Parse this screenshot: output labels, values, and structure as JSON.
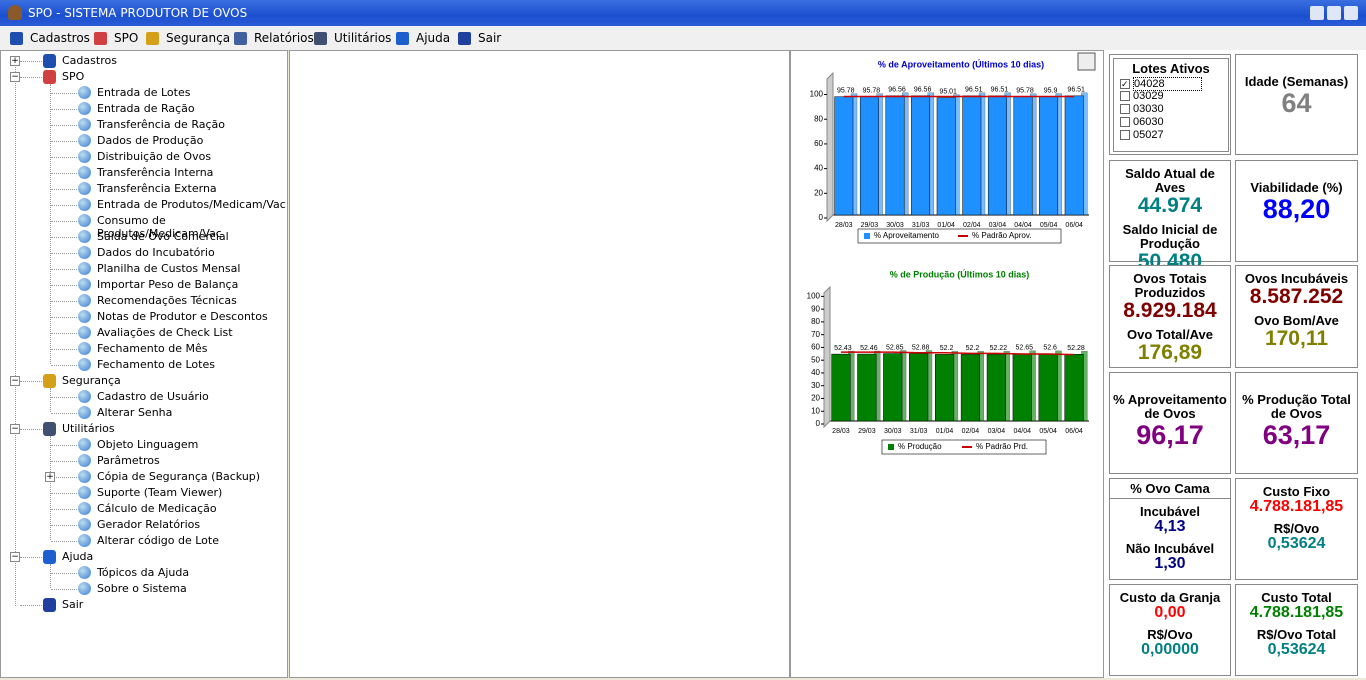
{
  "window": {
    "title": "SPO - SISTEMA PRODUTOR DE OVOS"
  },
  "menu": [
    "Cadastros",
    "SPO",
    "Segurança",
    "Relatórios",
    "Utilitários",
    "Ajuda",
    "Sair"
  ],
  "tree": [
    {
      "label": "Cadastros",
      "children": []
    },
    {
      "label": "SPO",
      "children": [
        "Entrada de Lotes",
        "Entrada de Ração",
        "Transferência de Ração",
        "Dados de Produção",
        "Distribuição de Ovos",
        "Transferência Interna",
        "Transferência Externa",
        "Entrada de Produtos/Medicam/Vac",
        "Consumo de Produtos/Medicam/Vac",
        "Saída de Ovo Comercial",
        "Dados do Incubatório",
        "Planilha de Custos Mensal",
        "Importar Peso de Balança",
        "Recomendações Técnicas",
        "Notas de Produtor e Descontos",
        "Avaliações de Check List",
        "Fechamento de Mês",
        "Fechamento de Lotes"
      ]
    },
    {
      "label": "Segurança",
      "children": [
        "Cadastro de Usuário",
        "Alterar Senha"
      ]
    },
    {
      "label": "Utilitários",
      "children": [
        "Objeto Linguagem",
        "Parâmetros",
        "Cópia de Segurança (Backup)",
        "Suporte (Team Viewer)",
        "Cálculo de Medicação",
        "Gerador Relatórios",
        "Alterar código de Lote"
      ]
    },
    {
      "label": "Ajuda",
      "children": [
        "Tópicos da Ajuda",
        "Sobre o Sistema"
      ]
    },
    {
      "label": "Sair",
      "children": []
    }
  ],
  "chart_data": [
    {
      "type": "bar",
      "title": "% de Aproveitamento (Últimos 10 dias)",
      "title_color": "#0000cc",
      "categories": [
        "28/03",
        "29/03",
        "30/03",
        "31/03",
        "01/04",
        "02/04",
        "03/04",
        "04/04",
        "05/04",
        "06/04"
      ],
      "series": [
        {
          "name": "% Aproveitamento",
          "color": "#1e90ff",
          "values": [
            95.78,
            95.78,
            96.56,
            96.56,
            95.01,
            96.51,
            96.51,
            95.78,
            95.9,
            96.51
          ]
        },
        {
          "name": "% Padrão Aprov.",
          "color": "#cc0000",
          "type": "line",
          "values": [
            96,
            96,
            96,
            96,
            96,
            96,
            96,
            96,
            96,
            96
          ]
        }
      ],
      "ylim": [
        0,
        115
      ],
      "yticks": [
        0,
        20,
        40,
        60,
        80,
        100
      ]
    },
    {
      "type": "bar",
      "title": "% de Produção (Últimos 10 dias)",
      "title_color": "#008000",
      "categories": [
        "28/03",
        "29/03",
        "30/03",
        "31/03",
        "01/04",
        "02/04",
        "03/04",
        "04/04",
        "05/04",
        "06/04"
      ],
      "series": [
        {
          "name": "% Produção",
          "color": "#008000",
          "values": [
            52.43,
            52.46,
            52.85,
            52.88,
            52.2,
            52.2,
            52.22,
            52.65,
            52.6,
            52.28
          ]
        },
        {
          "name": "% Padrão Prd.",
          "color": "#cc0000",
          "type": "line",
          "values": [
            54,
            54,
            54,
            53.5,
            53.5,
            53,
            53,
            52.5,
            52.5,
            52
          ]
        }
      ],
      "ylim": [
        0,
        105
      ],
      "yticks": [
        0,
        10,
        20,
        30,
        40,
        50,
        60,
        70,
        80,
        90,
        100
      ]
    }
  ],
  "lotes": {
    "title": "Lotes Ativos",
    "items": [
      "04028",
      "03029",
      "03030",
      "06030",
      "05027"
    ],
    "checked": [
      true,
      false,
      false,
      false,
      false
    ]
  },
  "cells": [
    {
      "items": [
        {
          "label": "Idade (Semanas)",
          "value": "64",
          "color": "#808080"
        }
      ]
    },
    {
      "items": [
        {
          "label": "Saldo Atual de Aves",
          "value": "44.974",
          "color": "#008080"
        },
        {
          "label": "Saldo Inicial de Produção",
          "value": "50.480",
          "color": "#008080"
        }
      ]
    },
    {
      "items": [
        {
          "label": "Viabilidade (%)",
          "value": "88,20",
          "color": "#0000ff"
        }
      ]
    },
    {
      "items": [
        {
          "label": "Ovos Totais Produzidos",
          "value": "8.929.184",
          "color": "#800000"
        },
        {
          "label": "Ovo Total/Ave",
          "value": "176,89",
          "color": "#808000"
        }
      ]
    },
    {
      "items": [
        {
          "label": "Ovos Incubáveis",
          "value": "8.587.252",
          "color": "#800000"
        },
        {
          "label": "Ovo Bom/Ave",
          "value": "170,11",
          "color": "#808000"
        }
      ]
    },
    {
      "items": [
        {
          "label": "% Aproveitamento de Ovos",
          "value": "96,17",
          "color": "#800080"
        }
      ]
    },
    {
      "items": [
        {
          "label": "% Produção Total de Ovos",
          "value": "63,17",
          "color": "#800080"
        }
      ]
    },
    {
      "title": "% Ovo Cama",
      "items": [
        {
          "label": "Incubável",
          "value": "4,13",
          "color": "#000080"
        },
        {
          "label": "Não Incubável",
          "value": "1,30",
          "color": "#000080"
        }
      ]
    },
    {
      "items": [
        {
          "label": "Custo Fixo",
          "value": "4.788.181,85",
          "color": "#ff0000"
        },
        {
          "label": "R$/Ovo",
          "value": "0,53624",
          "color": "#008080"
        }
      ]
    },
    {
      "items": [
        {
          "label": "Custo da Granja",
          "value": "0,00",
          "color": "#ff0000"
        },
        {
          "label": "R$/Ovo",
          "value": "0,00000",
          "color": "#008080"
        }
      ]
    },
    {
      "items": [
        {
          "label": "Custo Total",
          "value": "4.788.181,85",
          "color": "#008000"
        },
        {
          "label": "R$/Ovo Total",
          "value": "0,53624",
          "color": "#008080"
        }
      ]
    }
  ]
}
